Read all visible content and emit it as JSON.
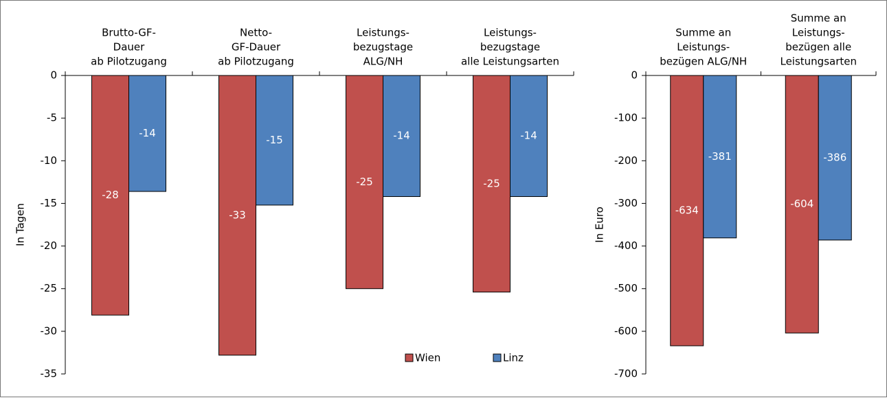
{
  "chart_data": [
    {
      "type": "bar",
      "ylabel": "In Tagen",
      "categories": [
        [
          "Brutto-GF-",
          "Dauer",
          "ab Pilotzugang"
        ],
        [
          "Netto-",
          "GF-Dauer",
          "ab Pilotzugang"
        ],
        [
          "Leistungs-",
          "bezugstage",
          "ALG/NH"
        ],
        [
          "Leistungs-",
          "bezugstage",
          "alle Leistungsarten"
        ]
      ],
      "series": [
        {
          "name": "Wien",
          "color": "#c0504d",
          "values": [
            -28.1,
            -32.8,
            -25.0,
            -25.4
          ],
          "value_labels": [
            "-28",
            "-33",
            "-25",
            "-25"
          ]
        },
        {
          "name": "Linz",
          "color": "#4f81bd",
          "values": [
            -13.6,
            -15.2,
            -14.2,
            -14.2
          ],
          "value_labels": [
            "-14",
            "-15",
            "-14",
            "-14"
          ]
        }
      ],
      "ylim": [
        -35,
        0
      ],
      "yticks": [
        0,
        -5,
        -10,
        -15,
        -20,
        -25,
        -30,
        -35
      ],
      "legend": "bottom-right"
    },
    {
      "type": "bar",
      "ylabel": "In Euro",
      "categories": [
        [
          "Summe an",
          "Leistungs-",
          "bezügen ALG/NH"
        ],
        [
          "Summe an",
          "Leistungs-",
          "bezügen alle",
          "Leistungsarten"
        ]
      ],
      "series": [
        {
          "color": "#c0504d",
          "values": [
            -634,
            -604
          ]
        },
        {
          "color": "#4f81bd",
          "values": [
            -381,
            -386
          ]
        }
      ],
      "ylim": [
        -700,
        0
      ],
      "yticks": [
        0,
        -100,
        -200,
        -300,
        -400,
        -500,
        -600,
        -700
      ]
    }
  ]
}
